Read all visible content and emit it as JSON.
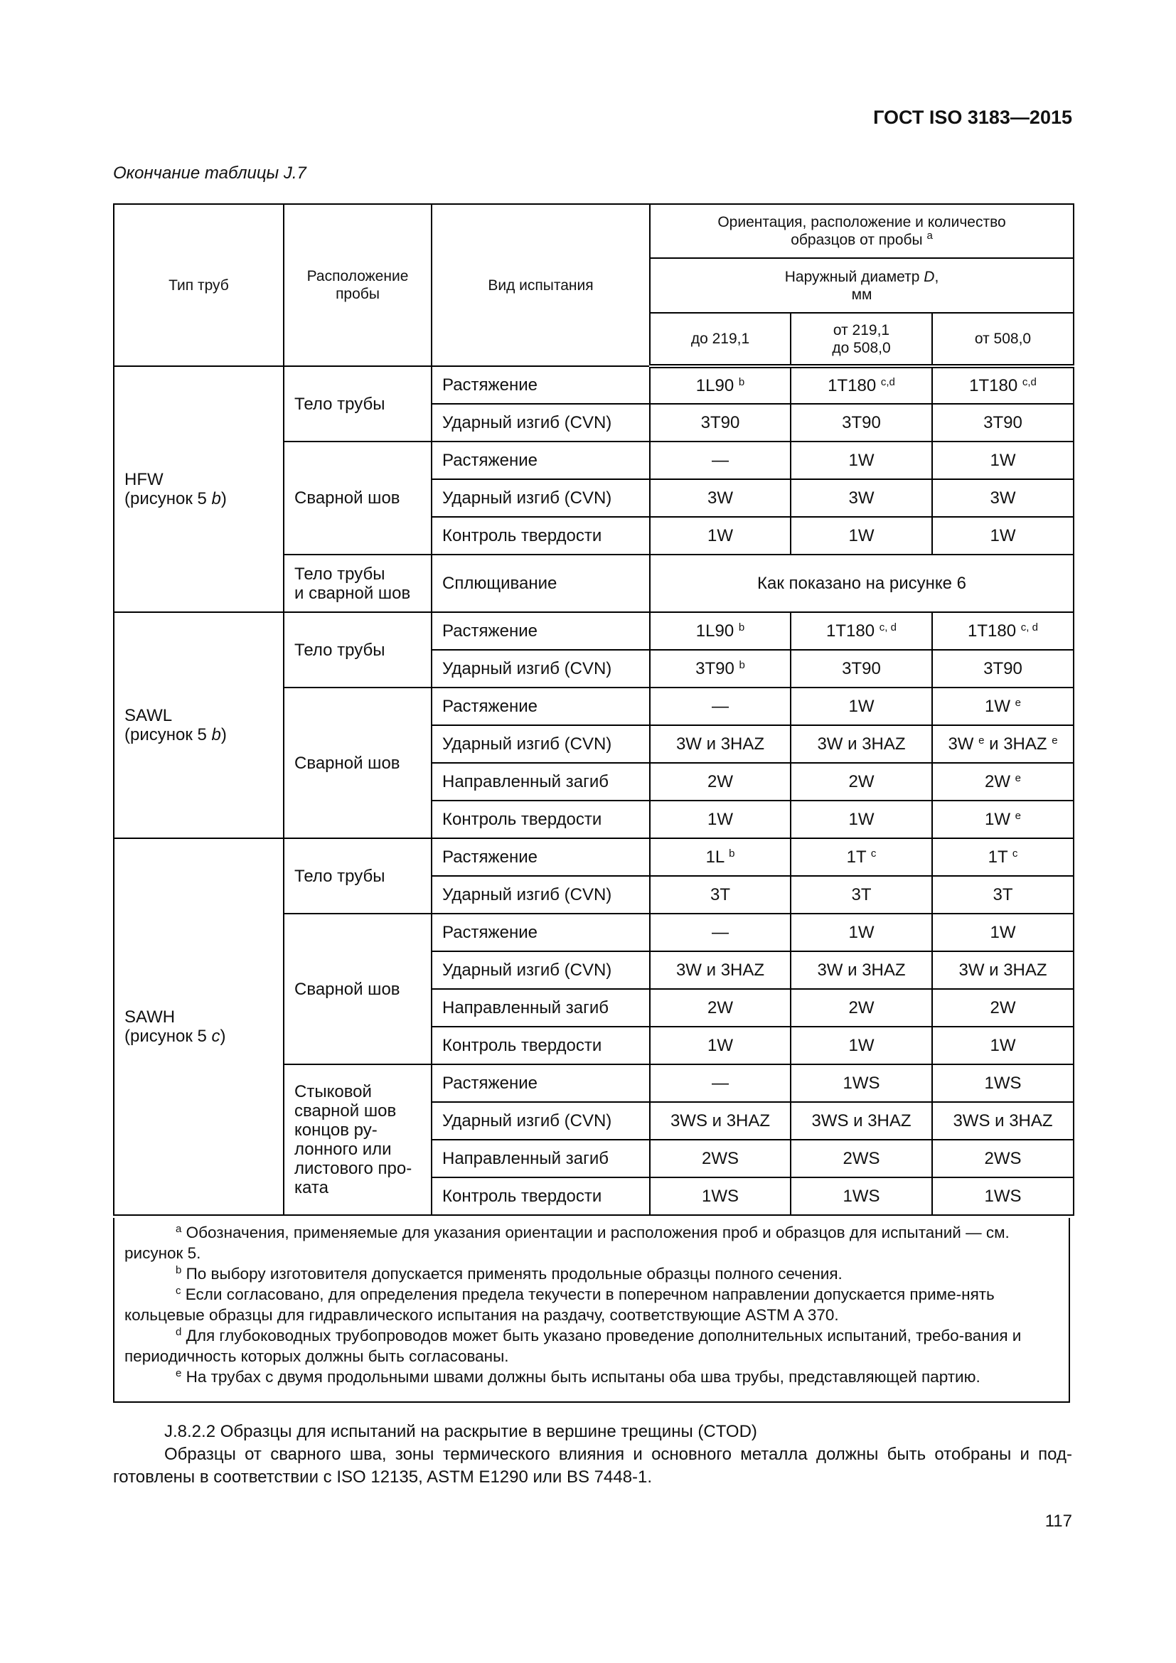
{
  "header": {
    "standard": "ГОСТ ISO 3183—2015",
    "continuation": "Окончание таблицы J.7"
  },
  "table": {
    "headers": {
      "pipe_type": "Тип труб",
      "sample_location": "Расположение\nпробы",
      "test_type": "Вид испытания",
      "orientation": "Ориентация, расположение и количество\nобразцов от пробы",
      "orientation_sup": "a",
      "diameter_prefix": "Наружный диаметр ",
      "diameter_symbol": "D",
      "diameter_suffix": ",\nмм",
      "ranges": [
        "до 219,1",
        "от 219,1\nдо 508,0",
        "от 508,0"
      ]
    },
    "groups": [
      {
        "type": "HFW",
        "fig_prefix": "(рисунок 5 ",
        "fig_letter": "b",
        "fig_suffix": ")",
        "sections": [
          {
            "location": "Тело трубы",
            "rows": [
              {
                "test": "Растяжение",
                "values": [
                  {
                    "v": "1L90",
                    "sup": "b"
                  },
                  {
                    "v": "1T180",
                    "sup": "c,d"
                  },
                  {
                    "v": "1T180",
                    "sup": "c,d"
                  }
                ]
              },
              {
                "test": "Ударный изгиб (CVN)",
                "values": [
                  {
                    "v": "3T90"
                  },
                  {
                    "v": "3T90"
                  },
                  {
                    "v": "3T90"
                  }
                ]
              }
            ]
          },
          {
            "location": "Сварной шов",
            "rows": [
              {
                "test": "Растяжение",
                "values": [
                  {
                    "v": "—"
                  },
                  {
                    "v": "1W"
                  },
                  {
                    "v": "1W"
                  }
                ]
              },
              {
                "test": "Ударный изгиб (CVN)",
                "values": [
                  {
                    "v": "3W"
                  },
                  {
                    "v": "3W"
                  },
                  {
                    "v": "3W"
                  }
                ]
              },
              {
                "test": "Контроль твердости",
                "values": [
                  {
                    "v": "1W"
                  },
                  {
                    "v": "1W"
                  },
                  {
                    "v": "1W"
                  }
                ]
              }
            ]
          },
          {
            "location": "Тело трубы\nи сварной шов",
            "rows": [
              {
                "test": "Сплющивание",
                "span": "Как показано на рисунке 6"
              }
            ]
          }
        ]
      },
      {
        "type": "SAWL",
        "fig_prefix": "(рисунок 5 ",
        "fig_letter": "b",
        "fig_suffix": ")",
        "sections": [
          {
            "location": "Тело трубы",
            "rows": [
              {
                "test": "Растяжение",
                "values": [
                  {
                    "v": "1L90",
                    "sup": "b"
                  },
                  {
                    "v": "1T180",
                    "sup": "c, d"
                  },
                  {
                    "v": "1T180",
                    "sup": "c, d"
                  }
                ]
              },
              {
                "test": "Ударный изгиб (CVN)",
                "values": [
                  {
                    "v": "3T90",
                    "sup": "b"
                  },
                  {
                    "v": "3T90"
                  },
                  {
                    "v": "3T90"
                  }
                ]
              }
            ]
          },
          {
            "location": "Сварной шов",
            "rows": [
              {
                "test": "Растяжение",
                "values": [
                  {
                    "v": "—"
                  },
                  {
                    "v": "1W"
                  },
                  {
                    "v": "1W",
                    "sup": "e"
                  }
                ]
              },
              {
                "test": "Ударный изгиб (CVN)",
                "values": [
                  {
                    "v": "3W и 3HAZ"
                  },
                  {
                    "v": "3W и 3HAZ"
                  },
                  {
                    "v": "3W",
                    "sup": "e",
                    "v2": " и 3HAZ",
                    "sup2": "e"
                  }
                ]
              },
              {
                "test": "Направленный загиб",
                "values": [
                  {
                    "v": "2W"
                  },
                  {
                    "v": "2W"
                  },
                  {
                    "v": "2W",
                    "sup": "e"
                  }
                ]
              },
              {
                "test": "Контроль твердости",
                "values": [
                  {
                    "v": "1W"
                  },
                  {
                    "v": "1W"
                  },
                  {
                    "v": "1W",
                    "sup": "e"
                  }
                ]
              }
            ]
          }
        ]
      },
      {
        "type": "SAWH",
        "fig_prefix": "(рисунок 5 ",
        "fig_letter": "c",
        "fig_suffix": ")",
        "sections": [
          {
            "location": "Тело трубы",
            "rows": [
              {
                "test": "Растяжение",
                "values": [
                  {
                    "v": "1L",
                    "sup": "b"
                  },
                  {
                    "v": "1T",
                    "sup": "c"
                  },
                  {
                    "v": "1T",
                    "sup": "c"
                  }
                ]
              },
              {
                "test": "Ударный изгиб (CVN)",
                "values": [
                  {
                    "v": "3T"
                  },
                  {
                    "v": "3T"
                  },
                  {
                    "v": "3T"
                  }
                ]
              }
            ]
          },
          {
            "location": "Сварной шов",
            "rows": [
              {
                "test": "Растяжение",
                "values": [
                  {
                    "v": "—"
                  },
                  {
                    "v": "1W"
                  },
                  {
                    "v": "1W"
                  }
                ]
              },
              {
                "test": "Ударный изгиб (CVN)",
                "values": [
                  {
                    "v": "3W и 3HAZ"
                  },
                  {
                    "v": "3W и 3HAZ"
                  },
                  {
                    "v": "3W и 3HAZ"
                  }
                ]
              },
              {
                "test": "Направленный загиб",
                "values": [
                  {
                    "v": "2W"
                  },
                  {
                    "v": "2W"
                  },
                  {
                    "v": "2W"
                  }
                ]
              },
              {
                "test": "Контроль твердости",
                "values": [
                  {
                    "v": "1W"
                  },
                  {
                    "v": "1W"
                  },
                  {
                    "v": "1W"
                  }
                ]
              }
            ]
          },
          {
            "location": "Стыковой\nсварной шов\nконцов ру-\nлонного или\nлистового про-\nката",
            "rows": [
              {
                "test": "Растяжение",
                "values": [
                  {
                    "v": "—"
                  },
                  {
                    "v": "1WS"
                  },
                  {
                    "v": "1WS"
                  }
                ]
              },
              {
                "test": "Ударный изгиб (CVN)",
                "values": [
                  {
                    "v": "3WS и 3HAZ"
                  },
                  {
                    "v": "3WS и 3HAZ"
                  },
                  {
                    "v": "3WS и 3HAZ"
                  }
                ]
              },
              {
                "test": "Направленный загиб",
                "values": [
                  {
                    "v": "2WS"
                  },
                  {
                    "v": "2WS"
                  },
                  {
                    "v": "2WS"
                  }
                ]
              },
              {
                "test": "Контроль твердости",
                "values": [
                  {
                    "v": "1WS"
                  },
                  {
                    "v": "1WS"
                  },
                  {
                    "v": "1WS"
                  }
                ]
              }
            ]
          }
        ]
      }
    ]
  },
  "footnotes": [
    {
      "mark": "a",
      "text": "Обозначения, применяемые для указания ориентации и расположения проб и образцов для испытаний — см. рисунок 5."
    },
    {
      "mark": "b",
      "text": "По выбору изготовителя допускается применять продольные образцы полного сечения."
    },
    {
      "mark": "c",
      "text": "Если согласовано, для определения предела текучести в поперечном направлении допускается приме-нять кольцевые образцы для гидравлического испытания на раздачу, соответствующие ASTM A 370."
    },
    {
      "mark": "d",
      "text": "Для глубоководных трубопроводов может быть указано проведение дополнительных испытаний, требо-вания и периодичность которых должны быть согласованы."
    },
    {
      "mark": "e",
      "text": "На трубах с двумя продольными швами должны быть испытаны оба шва трубы, представляющей партию."
    }
  ],
  "body": {
    "heading": "J.8.2.2 Образцы для испытаний на раскрытие в вершине трещины (CTOD)",
    "paragraph": "Образцы от сварного шва, зоны термического влияния и основного металла должны быть отобраны и под-готовлены в соответствии с ISO 12135, ASTM E1290 или BS 7448-1."
  },
  "page_number": "117"
}
